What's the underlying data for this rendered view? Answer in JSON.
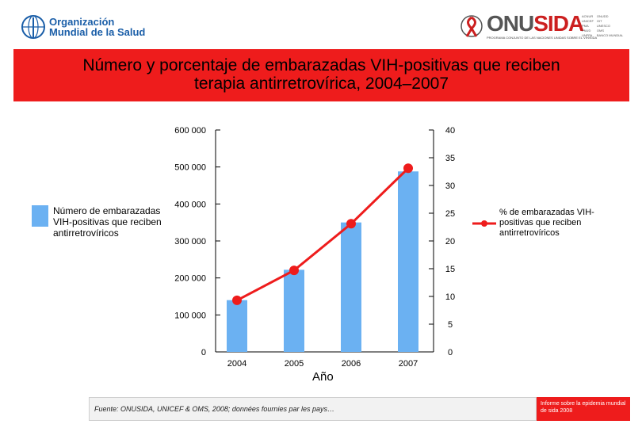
{
  "header": {
    "who_logo": {
      "icon": "who-emblem-icon",
      "line1": "Organización",
      "line2": "Mundial de la Salud",
      "color": "#1a5ea8"
    },
    "unaids_logo": {
      "icon": "red-ribbon-icon",
      "part1": "ONU",
      "part2": "SIDA",
      "subtitle": "PROGRAMA CONJUNTO DE LAS NACIONES UNIDAS SOBRE EL VIH/SIDA",
      "accent": "#cc1f1f"
    },
    "cosponsors": {
      "col1": [
        "ACNUR",
        "UNICEF",
        "PMA",
        "PNUD",
        "UNFPA"
      ],
      "col2": [
        "ONUDD",
        "OIT",
        "UNESCO",
        "OMS",
        "BANCO MUNDIAL"
      ]
    }
  },
  "title": {
    "line1": "Número y porcentaje de embarazadas VIH-positivas que reciben",
    "line2": "terapia antirretrovírica, 2004–2007",
    "band_color": "#ee1c1c"
  },
  "legend": {
    "bars_label": "Número de embarazadas VIH-positivas que reciben antirretrovíricos",
    "line_label": "% de embarazadas VIH-positivas que reciben antirretrovíricos"
  },
  "chart_data": {
    "type": "bar",
    "title": "Número y porcentaje de embarazadas VIH-positivas que reciben terapia antirretrovírica, 2004–2007",
    "xlabel": "Año",
    "ylabel": "Número de embarazadas VIH-positivas que reciben antirretrovíricos",
    "y2label": "% de embarazadas VIH-positivas que reciben antirretrovíricos",
    "categories": [
      "2004",
      "2005",
      "2006",
      "2007"
    ],
    "ylim": [
      0,
      600000
    ],
    "y2lim": [
      0,
      40
    ],
    "yticks": [
      "0",
      "100 000",
      "200 000",
      "300 000",
      "400 000",
      "500 000",
      "600 000"
    ],
    "y2ticks": [
      "0",
      "5",
      "10",
      "15",
      "20",
      "25",
      "30",
      "35",
      "40"
    ],
    "series": [
      {
        "name": "Número de embarazadas VIH-positivas que reciben antirretrovíricos",
        "type": "bar",
        "axis": "left",
        "color": "#6bb1f2",
        "values": [
          140000,
          222000,
          350000,
          488000
        ]
      },
      {
        "name": "% de embarazadas VIH-positivas que reciben antirretrovíricos",
        "type": "line",
        "axis": "right",
        "color": "#ee1c1c",
        "values": [
          9.3,
          14.7,
          23.1,
          33.1
        ]
      }
    ],
    "grid": false,
    "legend_position": "sides"
  },
  "footer": {
    "source": "Fuente: ONUSIDA, UNICEF & OMS, 2008; données fournies par les pays…",
    "report": "Informe sobre la epidemia mundial de sida 2008"
  }
}
